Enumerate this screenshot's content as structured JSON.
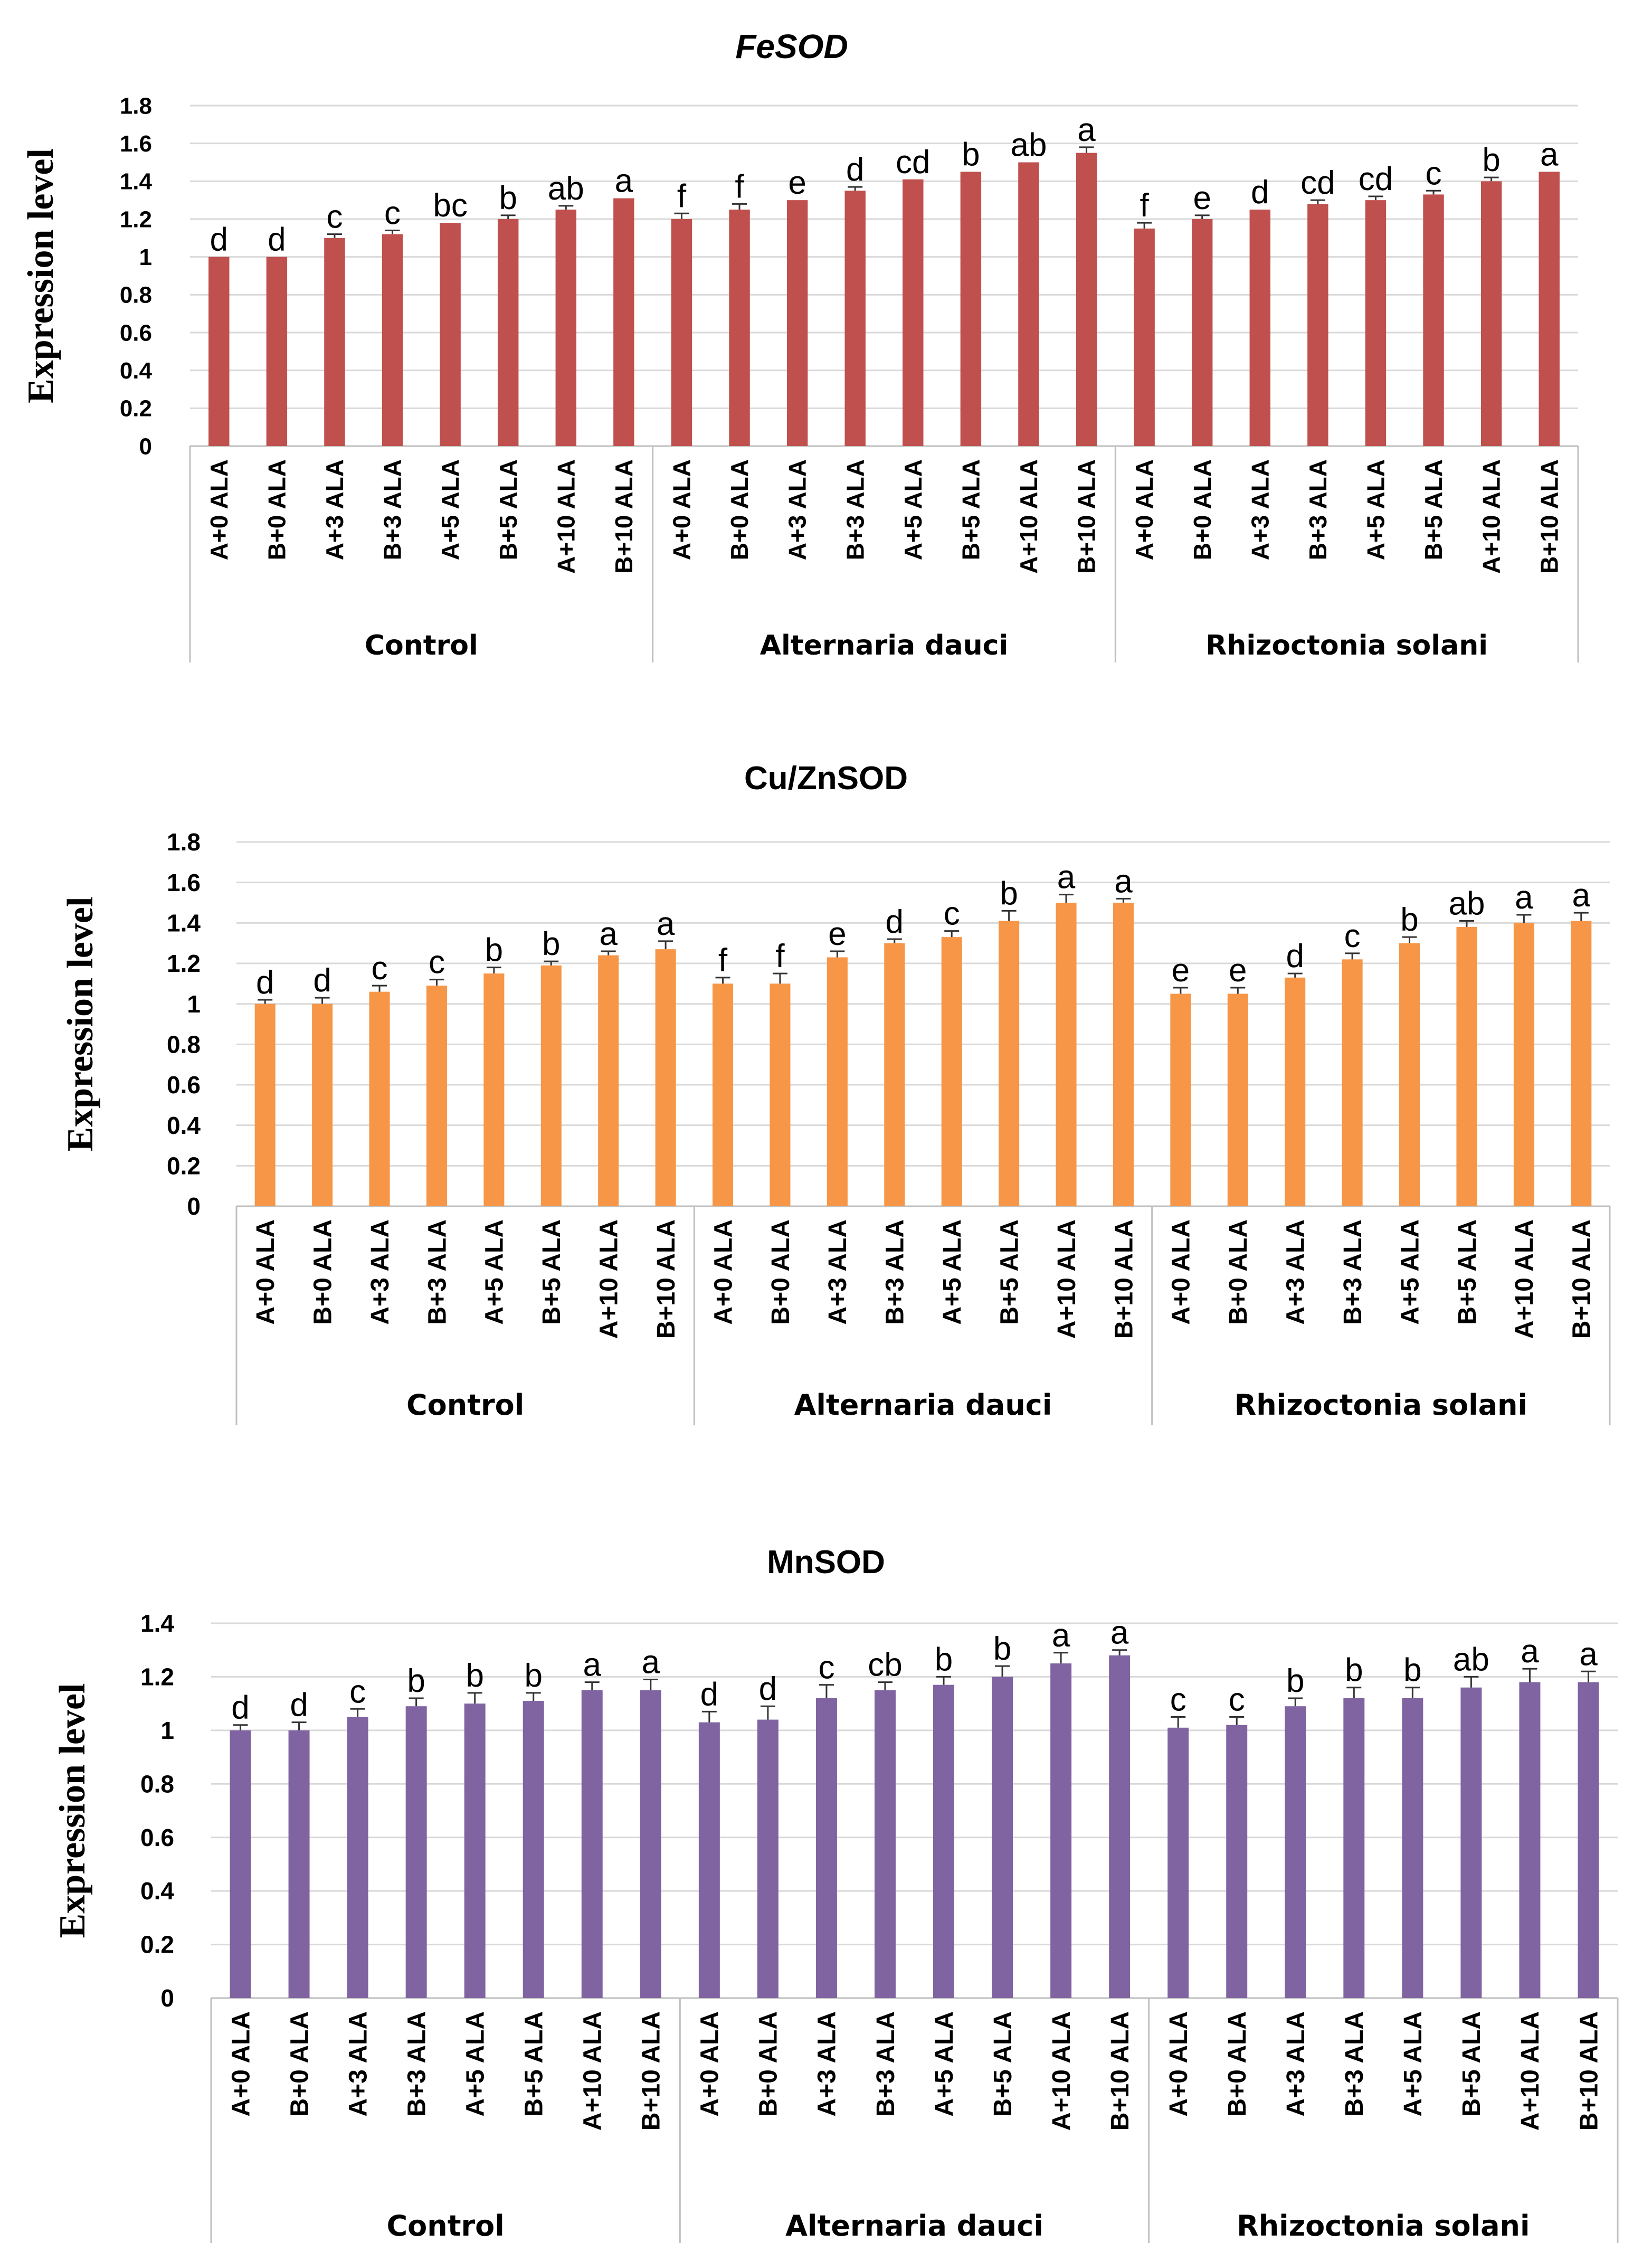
{
  "chart_data": [
    {
      "type": "bar",
      "title": "FeSOD",
      "ylabel": "Expression level",
      "ylim": [
        0,
        1.8
      ],
      "yticks": [
        "0",
        "0.2",
        "0.4",
        "0.6",
        "0.8",
        "1",
        "1.2",
        "1.4",
        "1.6",
        "1.8"
      ],
      "color": "#c0504d",
      "grid": true,
      "groups": [
        "Control",
        "Alternaria dauci",
        "Rhizoctonia  solani"
      ],
      "categories": [
        "A+0 ALA",
        "B+0 ALA",
        "A+3 ALA",
        "B+3 ALA",
        "A+5 ALA",
        "B+5 ALA",
        "A+10 ALA",
        "B+10 ALA"
      ],
      "values": [
        [
          1.0,
          1.0,
          1.1,
          1.12,
          1.18,
          1.2,
          1.25,
          1.31
        ],
        [
          1.2,
          1.25,
          1.3,
          1.35,
          1.41,
          1.45,
          1.5,
          1.55
        ],
        [
          1.15,
          1.2,
          1.25,
          1.28,
          1.3,
          1.33,
          1.4,
          1.45
        ]
      ],
      "errors": [
        [
          0.0,
          0.0,
          0.02,
          0.02,
          0.0,
          0.02,
          0.02,
          0.0
        ],
        [
          0.03,
          0.03,
          0.0,
          0.02,
          0.0,
          0.0,
          0.0,
          0.03
        ],
        [
          0.03,
          0.02,
          0.0,
          0.02,
          0.02,
          0.02,
          0.02,
          0.0
        ]
      ],
      "significance": [
        [
          "d",
          "d",
          "c",
          "c",
          "bc",
          "b",
          "ab",
          "a"
        ],
        [
          "f",
          "f",
          "e",
          "d",
          "cd",
          "b",
          "ab",
          "a"
        ],
        [
          "f",
          "e",
          "d",
          "cd",
          "cd",
          "c",
          "b",
          "a"
        ]
      ]
    },
    {
      "type": "bar",
      "title": "Cu/ZnSOD",
      "ylabel": "Expression level",
      "ylim": [
        0,
        1.8
      ],
      "yticks": [
        "0",
        "0.2",
        "0.4",
        "0.6",
        "0.8",
        "1",
        "1.2",
        "1.4",
        "1.6",
        "1.8"
      ],
      "color": "#f79646",
      "grid": true,
      "groups": [
        "Control",
        "Alternaria dauci",
        "Rhizoctonia  solani"
      ],
      "categories": [
        "A+0 ALA",
        "B+0 ALA",
        "A+3 ALA",
        "B+3 ALA",
        "A+5 ALA",
        "B+5 ALA",
        "A+10 ALA",
        "B+10 ALA"
      ],
      "values": [
        [
          1.0,
          1.0,
          1.06,
          1.09,
          1.15,
          1.19,
          1.24,
          1.27
        ],
        [
          1.1,
          1.1,
          1.23,
          1.3,
          1.33,
          1.41,
          1.5,
          1.5
        ],
        [
          1.05,
          1.05,
          1.13,
          1.22,
          1.3,
          1.38,
          1.4,
          1.41
        ]
      ],
      "errors": [
        [
          0.02,
          0.03,
          0.03,
          0.03,
          0.03,
          0.02,
          0.02,
          0.04
        ],
        [
          0.03,
          0.05,
          0.03,
          0.02,
          0.03,
          0.05,
          0.04,
          0.02
        ],
        [
          0.03,
          0.03,
          0.02,
          0.03,
          0.03,
          0.03,
          0.04,
          0.04
        ]
      ],
      "significance": [
        [
          "d",
          "d",
          "c",
          "c",
          "b",
          "b",
          "a",
          "a"
        ],
        [
          "f",
          "f",
          "e",
          "d",
          "c",
          "b",
          "a",
          "a"
        ],
        [
          "e",
          "e",
          "d",
          "c",
          "b",
          "ab",
          "a",
          "a"
        ]
      ]
    },
    {
      "type": "bar",
      "title": "MnSOD",
      "ylabel": "Expression level",
      "ylim": [
        0,
        1.4
      ],
      "yticks": [
        "0",
        "0.2",
        "0.4",
        "0.6",
        "0.8",
        "1",
        "1.2",
        "1.4"
      ],
      "color": "#8064a2",
      "grid": true,
      "groups": [
        "Control",
        "Alternaria dauci",
        "Rhizoctonia  solani"
      ],
      "categories": [
        "A+0 ALA",
        "B+0 ALA",
        "A+3 ALA",
        "B+3 ALA",
        "A+5 ALA",
        "B+5 ALA",
        "A+10 ALA",
        "B+10 ALA"
      ],
      "values": [
        [
          1.0,
          1.0,
          1.05,
          1.09,
          1.1,
          1.11,
          1.15,
          1.15
        ],
        [
          1.03,
          1.04,
          1.12,
          1.15,
          1.17,
          1.2,
          1.25,
          1.28
        ],
        [
          1.01,
          1.02,
          1.09,
          1.12,
          1.12,
          1.16,
          1.18,
          1.18
        ]
      ],
      "errors": [
        [
          0.02,
          0.03,
          0.03,
          0.03,
          0.04,
          0.03,
          0.03,
          0.04
        ],
        [
          0.04,
          0.05,
          0.05,
          0.03,
          0.03,
          0.04,
          0.04,
          0.02
        ],
        [
          0.04,
          0.03,
          0.03,
          0.04,
          0.04,
          0.04,
          0.05,
          0.04
        ]
      ],
      "significance": [
        [
          "d",
          "d",
          "c",
          "b",
          "b",
          "b",
          "a",
          "a"
        ],
        [
          "d",
          "d",
          "c",
          "cb",
          "b",
          "b",
          "a",
          "a"
        ],
        [
          "c",
          "c",
          "b",
          "b",
          "b",
          "ab",
          "a",
          "a"
        ]
      ]
    }
  ]
}
